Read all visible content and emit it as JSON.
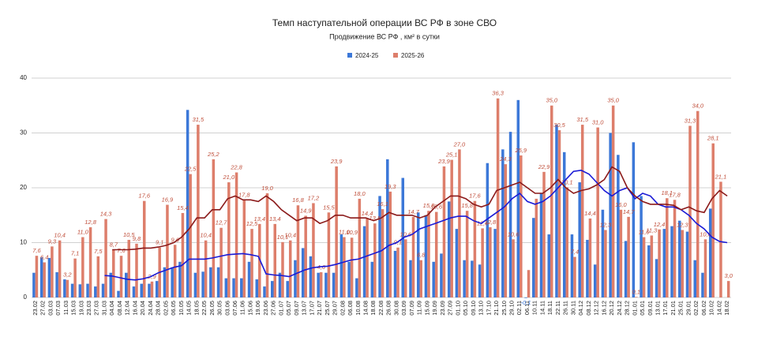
{
  "chart_data": {
    "type": "bar",
    "title": "Темп наступательной операции ВС РФ в зоне СВО",
    "subtitle": "Продвижение ВС РФ , км² в сутки",
    "categories": [
      "23.02",
      "27.02",
      "03.03",
      "07.03",
      "11.03",
      "15.03",
      "19.03",
      "23.03",
      "27.03",
      "31.03",
      "04.04",
      "08.04",
      "12.04",
      "16.04",
      "20.04",
      "24.04",
      "28.04",
      "02.05",
      "06.05",
      "10.05",
      "14.05",
      "18.05",
      "22.05",
      "26.05",
      "30.05",
      "03.06",
      "07.06",
      "11.06",
      "15.06",
      "19.06",
      "23.06",
      "27.06",
      "01.07",
      "05.07",
      "09.07",
      "13.07",
      "17.07",
      "21.07",
      "25.07",
      "29.07",
      "02.08",
      "06.08",
      "10.08",
      "14.08",
      "18.08",
      "22.08",
      "26.08",
      "30.08",
      "03.09",
      "07.09",
      "11.09",
      "15.09",
      "19.09",
      "23.09",
      "27.09",
      "01.10",
      "05.10",
      "09.10",
      "13.10",
      "17.10",
      "21.10",
      "25.10",
      "29.10",
      "02.11",
      "06.11",
      "10.11",
      "14.11",
      "18.11",
      "22.11",
      "26.11",
      "30.11",
      "04.12",
      "08.12",
      "12.12",
      "16.12",
      "20.12",
      "24.12",
      "28.12",
      "01.01",
      "05.01",
      "09.01",
      "13.01",
      "17.01",
      "21.01",
      "25.01",
      "29.01",
      "02.02",
      "06.02",
      "10.02",
      "14.02",
      "18.02"
    ],
    "series": [
      {
        "name": "2024-25",
        "color": "#3c78d8",
        "line_color": "#1a1ad6",
        "values": [
          4.5,
          7.3,
          7.2,
          4.6,
          3.3,
          2.5,
          2.4,
          2.5,
          2.0,
          2.5,
          4.5,
          1.2,
          4.5,
          2.0,
          2.5,
          2.5,
          3.0,
          5.5,
          5.5,
          6.5,
          34.2,
          4.5,
          4.7,
          5.5,
          5.5,
          3.5,
          3.5,
          3.5,
          6.5,
          3.3,
          2.0,
          3.0,
          4.5,
          3.0,
          6.8,
          9.0,
          7.5,
          4.5,
          4.5,
          4.5,
          11.5,
          6.5,
          3.5,
          13.0,
          6.5,
          18.5,
          25.2,
          8.5,
          21.8,
          6.8,
          15.5,
          15.0,
          6.5,
          8.0,
          17.5,
          12.5,
          6.8,
          6.7,
          6.0,
          24.5,
          12.5,
          27.0,
          30.2,
          36.0,
          -0.1,
          14.5,
          19.0,
          11.5,
          31.5,
          26.5,
          11.5,
          21.0,
          10.5,
          6.0,
          16.0,
          30.0,
          26.0,
          10.3,
          28.3,
          18.5,
          9.5,
          7.0,
          12.5,
          13.0,
          14.0,
          12.0,
          6.8,
          4.5,
          16.2,
          null,
          null
        ],
        "value_labels": [
          null,
          null,
          null,
          null,
          null,
          null,
          null,
          null,
          null,
          null,
          null,
          null,
          null,
          null,
          null,
          null,
          null,
          null,
          null,
          null,
          null,
          null,
          null,
          null,
          null,
          null,
          null,
          null,
          null,
          null,
          null,
          null,
          null,
          null,
          null,
          null,
          null,
          null,
          null,
          null,
          null,
          null,
          null,
          null,
          null,
          null,
          null,
          null,
          null,
          null,
          null,
          null,
          null,
          null,
          null,
          null,
          null,
          null,
          null,
          null,
          null,
          null,
          null,
          null,
          "-0,1",
          null,
          null,
          null,
          null,
          null,
          null,
          null,
          null,
          null,
          null,
          null,
          null,
          null,
          null,
          null,
          null,
          null,
          null,
          null,
          null,
          null,
          null,
          null,
          null,
          null,
          null
        ],
        "average": [
          null,
          null,
          null,
          null,
          null,
          null,
          null,
          null,
          null,
          4.0,
          3.9,
          3.6,
          3.3,
          3.2,
          3.4,
          3.8,
          4.5,
          5.0,
          5.5,
          5.8,
          7.0,
          7.0,
          7.0,
          7.2,
          7.5,
          7.8,
          7.9,
          8.0,
          7.8,
          7.5,
          4.3,
          4.1,
          4.0,
          3.8,
          4.4,
          5.0,
          5.4,
          5.6,
          5.7,
          6.0,
          6.4,
          6.8,
          7.0,
          7.5,
          8.0,
          8.5,
          9.5,
          10.0,
          11.0,
          11.5,
          12.5,
          13.0,
          13.5,
          14.0,
          14.5,
          14.8,
          14.8,
          14.0,
          13.5,
          14.5,
          15.5,
          16.5,
          18.0,
          19.0,
          17.5,
          17.0,
          17.5,
          18.5,
          20.0,
          21.5,
          23.0,
          23.2,
          22.5,
          21.0,
          19.5,
          18.5,
          19.5,
          20.0,
          18.0,
          19.0,
          18.5,
          17.0,
          16.5,
          16.5,
          16.0,
          15.0,
          13.5,
          12.5,
          11.0,
          10.2,
          10.0
        ]
      },
      {
        "name": "2025-26",
        "color": "#dd7e6b",
        "line_color": "#8b1a1a",
        "values": [
          7.6,
          6.4,
          9.3,
          10.4,
          3.2,
          7.1,
          11.0,
          12.8,
          7.5,
          14.3,
          8.7,
          7.6,
          10.5,
          9.8,
          17.6,
          2.9,
          9.1,
          16.9,
          9.6,
          15.4,
          22.5,
          31.5,
          10.4,
          25.2,
          12.7,
          21.0,
          22.8,
          17.8,
          12.5,
          13.4,
          19.0,
          13.4,
          10.1,
          10.4,
          16.8,
          14.9,
          17.2,
          4.6,
          15.5,
          23.9,
          11.0,
          10.9,
          18.0,
          14.4,
          13.5,
          16.1,
          19.3,
          9.1,
          10.6,
          14.7,
          6.8,
          15.8,
          15.6,
          23.9,
          25.1,
          27.0,
          15.8,
          17.6,
          12.6,
          12.8,
          36.3,
          24.3,
          10.6,
          25.9,
          5.0,
          18.0,
          22.9,
          35.0,
          30.5,
          20.1,
          7.4,
          31.5,
          14.4,
          31.0,
          12.3,
          35.0,
          16.0,
          14.7,
          0.1,
          11.0,
          11.3,
          12.4,
          18.1,
          17.8,
          12.3,
          31.3,
          34.0,
          10.6,
          28.1,
          21.1,
          3.0
        ],
        "value_labels": [
          "7,6",
          "6,4",
          "9,3",
          "10,4",
          "3,2",
          "7,1",
          "11,0",
          "12,8",
          "7,5",
          "14,3",
          "8,7",
          "7,6",
          "10,5",
          "9,8",
          "17,6",
          "2,9",
          "9,1",
          "16,9",
          "9,6",
          "15,4",
          "22,5",
          "31,5",
          "10,4",
          "25,2",
          "12,7",
          "21,0",
          "22,8",
          "17,8",
          "12,5",
          "13,4",
          "19,0",
          "13,4",
          "10,1",
          "10,4",
          "16,8",
          "14,9",
          "17,2",
          "4,6",
          "15,5",
          "23,9",
          "11,0",
          "10,9",
          "18,0",
          "14,4",
          "13,5",
          "16,1",
          "19,3",
          "9,1",
          "10,6",
          "14,7",
          "6,8",
          "15,8",
          "15,6",
          "23,9",
          "25,1",
          "27,0",
          "15,8",
          "17,6",
          "12,6",
          "12,8",
          "36,3",
          "24,3",
          "10,6",
          "25,9",
          null,
          null,
          "22,9",
          "35,0",
          "30,5",
          "20,1",
          "7,4",
          "31,5",
          "14,4",
          "31,0",
          "12,3",
          "35,0",
          "16,0",
          "14,7",
          "0,1",
          "11,0",
          "11,3",
          "12,4",
          "18,1",
          "17,8",
          "12,3",
          "31,3",
          "34,0",
          "10,6",
          "28,1",
          "21,1",
          "3,0"
        ],
        "average": [
          null,
          null,
          null,
          null,
          null,
          null,
          null,
          null,
          null,
          null,
          8.7,
          8.7,
          8.7,
          8.8,
          9.0,
          9.0,
          9.2,
          9.5,
          10.0,
          11.0,
          12.5,
          14.5,
          14.5,
          16.0,
          16.0,
          18.0,
          18.5,
          17.8,
          17.8,
          17.5,
          18.5,
          17.5,
          16.0,
          15.0,
          14.0,
          14.5,
          14.5,
          13.5,
          14.0,
          15.0,
          15.0,
          14.5,
          14.5,
          14.5,
          14.0,
          14.5,
          15.5,
          15.0,
          15.0,
          15.0,
          14.5,
          15.0,
          16.5,
          17.5,
          18.5,
          18.5,
          18.0,
          17.0,
          16.5,
          17.0,
          19.5,
          20.0,
          20.5,
          21.0,
          20.0,
          19.0,
          19.0,
          20.0,
          21.5,
          20.0,
          19.0,
          19.5,
          19.8,
          20.5,
          21.5,
          23.8,
          23.0,
          20.0,
          18.5,
          17.5,
          17.0,
          17.0,
          17.0,
          16.8,
          16.0,
          16.5,
          15.8,
          15.5,
          18.0,
          19.5,
          18.5
        ]
      }
    ],
    "ylim": [
      0,
      40
    ],
    "yticks": [
      0,
      10,
      20,
      30,
      40
    ],
    "grid": true,
    "legend": "top"
  }
}
